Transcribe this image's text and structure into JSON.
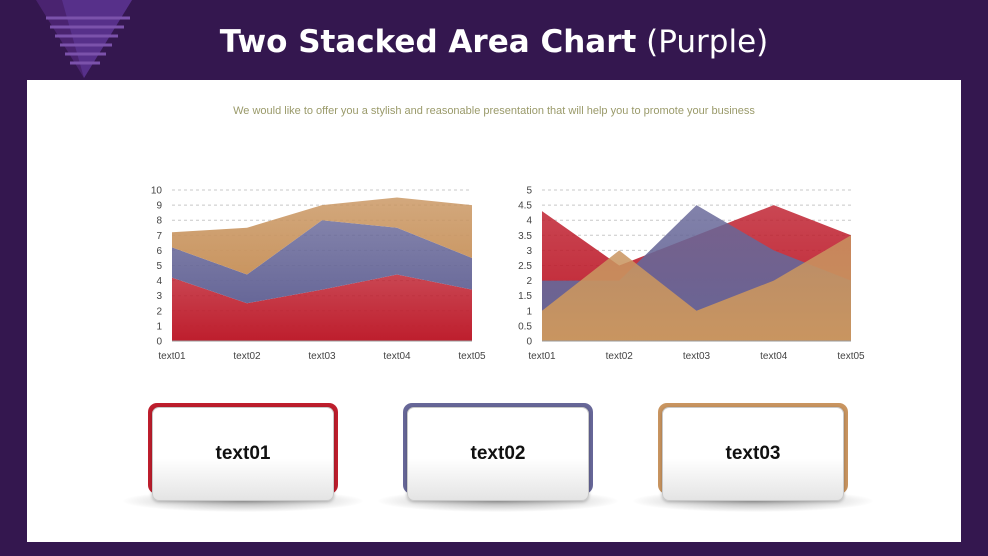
{
  "header": {
    "title_bold": "Two Stacked Area Chart",
    "title_light": "(Purple)"
  },
  "subtitle": "We would like to offer you a stylish and reasonable presentation that will help you to promote your business",
  "colors": {
    "red": "#be1e2d",
    "purple": "#676798",
    "tan": "#c99560",
    "background": "#34174f"
  },
  "chart_data": [
    {
      "type": "area",
      "stacked": true,
      "categories": [
        "text01",
        "text02",
        "text03",
        "text04",
        "text05"
      ],
      "series": [
        {
          "values": [
            4.2,
            2.5,
            3.4,
            4.4,
            3.4
          ],
          "color": "#be1e2d"
        },
        {
          "values": [
            2.0,
            1.9,
            4.6,
            3.1,
            2.1
          ],
          "color": "#676798"
        },
        {
          "values": [
            1.0,
            3.1,
            1.0,
            2.0,
            3.5
          ],
          "color": "#c99560"
        }
      ],
      "ylim": [
        0,
        10
      ],
      "yticks": [
        0,
        1,
        2,
        3,
        4,
        5,
        6,
        7,
        8,
        9,
        10
      ],
      "grid": true
    },
    {
      "type": "area",
      "stacked": false,
      "categories": [
        "text01",
        "text02",
        "text03",
        "text04",
        "text05"
      ],
      "series": [
        {
          "values": [
            4.3,
            2.5,
            3.5,
            4.5,
            3.5
          ],
          "color": "#be1e2d"
        },
        {
          "values": [
            2.0,
            2.0,
            4.5,
            3.0,
            2.0
          ],
          "color": "#676798"
        },
        {
          "values": [
            1.0,
            3.0,
            1.0,
            2.0,
            3.5
          ],
          "color": "#c99560"
        }
      ],
      "ylim": [
        0,
        5
      ],
      "yticks": [
        0,
        0.5,
        1,
        1.5,
        2,
        2.5,
        3,
        3.5,
        4,
        4.5,
        5
      ],
      "grid": true
    }
  ],
  "cards": [
    {
      "label": "text01",
      "color": "#be1e2d"
    },
    {
      "label": "text02",
      "color": "#676798"
    },
    {
      "label": "text03",
      "color": "#c99560"
    }
  ]
}
